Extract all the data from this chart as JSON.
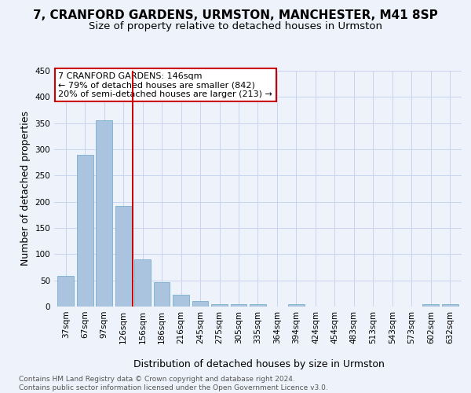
{
  "title": "7, CRANFORD GARDENS, URMSTON, MANCHESTER, M41 8SP",
  "subtitle": "Size of property relative to detached houses in Urmston",
  "xlabel": "Distribution of detached houses by size in Urmston",
  "ylabel": "Number of detached properties",
  "footnote": "Contains HM Land Registry data © Crown copyright and database right 2024.\nContains public sector information licensed under the Open Government Licence v3.0.",
  "categories": [
    "37sqm",
    "67sqm",
    "97sqm",
    "126sqm",
    "156sqm",
    "186sqm",
    "216sqm",
    "245sqm",
    "275sqm",
    "305sqm",
    "335sqm",
    "364sqm",
    "394sqm",
    "424sqm",
    "454sqm",
    "483sqm",
    "513sqm",
    "543sqm",
    "573sqm",
    "602sqm",
    "632sqm"
  ],
  "values": [
    59,
    290,
    355,
    192,
    90,
    46,
    22,
    10,
    5,
    5,
    5,
    0,
    5,
    0,
    0,
    0,
    0,
    0,
    0,
    5,
    5
  ],
  "bar_color": "#aac4e0",
  "bar_edge_color": "#7aafd0",
  "bg_color": "#eef2fa",
  "grid_color": "#c8d4ee",
  "property_line_color": "#cc0000",
  "annotation_box_color": "#ffffff",
  "annotation_box_edge": "#cc0000",
  "property_label": "7 CRANFORD GARDENS: 146sqm",
  "annotation_line1": "← 79% of detached houses are smaller (842)",
  "annotation_line2": "20% of semi-detached houses are larger (213) →",
  "ylim": [
    0,
    450
  ],
  "yticks": [
    0,
    50,
    100,
    150,
    200,
    250,
    300,
    350,
    400,
    450
  ],
  "title_fontsize": 11,
  "subtitle_fontsize": 9.5,
  "ylabel_fontsize": 9,
  "xlabel_fontsize": 9,
  "tick_fontsize": 7.5,
  "footnote_fontsize": 6.5,
  "annot_fontsize": 8
}
